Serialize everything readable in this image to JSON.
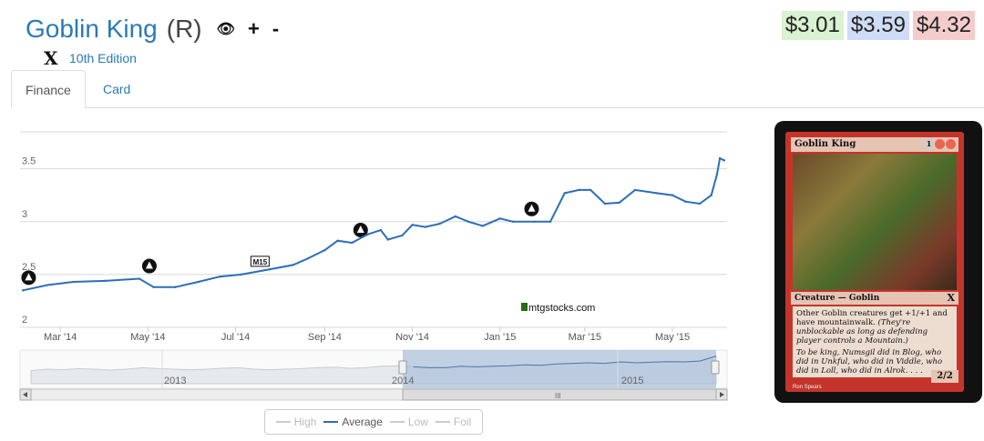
{
  "card": {
    "name": "Goblin King",
    "rarity": "(R)",
    "set_name": "10th Edition",
    "set_symbol": "X",
    "type_line": "Creature — Goblin",
    "rules_text": "Other Goblin creatures get +1/+1 and have mountainwalk.",
    "reminder_text": "(They're unblockable as long as defending player controls a Mountain.)",
    "flavor_text": "To be king, Numsgil did in Blog, who did in Unkful, who did in Viddle, who did in Loll, who did in Alrok. . . .",
    "power_toughness": "2/2",
    "mana_cost": [
      "1",
      "R",
      "R"
    ],
    "artist": "Ron Spears"
  },
  "header_icons": {
    "watch": "eye-icon",
    "add": "+",
    "remove": "-"
  },
  "prices": [
    {
      "label": "$3.01",
      "color": "#d9f2d0"
    },
    {
      "label": "$3.59",
      "color": "#cfdcf5"
    },
    {
      "label": "$4.32",
      "color": "#f5cccc"
    }
  ],
  "tabs": [
    {
      "label": "Finance",
      "active": true
    },
    {
      "label": "Card",
      "active": false
    }
  ],
  "chart_data": {
    "type": "line",
    "series": [
      {
        "name": "Average",
        "color": "#2b6eb8",
        "x": [
          "2014-02-03",
          "2014-02-20",
          "2014-03-10",
          "2014-04-01",
          "2014-04-25",
          "2014-05-05",
          "2014-05-20",
          "2014-06-05",
          "2014-06-20",
          "2014-07-05",
          "2014-07-25",
          "2014-08-10",
          "2014-08-20",
          "2014-09-01",
          "2014-09-10",
          "2014-09-20",
          "2014-10-01",
          "2014-10-10",
          "2014-10-15",
          "2014-10-25",
          "2014-11-01",
          "2014-11-10",
          "2014-11-20",
          "2014-12-01",
          "2014-12-10",
          "2014-12-20",
          "2015-01-01",
          "2015-01-10",
          "2015-01-25",
          "2015-02-05",
          "2015-02-15",
          "2015-02-25",
          "2015-03-05",
          "2015-03-15",
          "2015-03-25",
          "2015-04-05",
          "2015-04-20",
          "2015-05-01",
          "2015-05-10",
          "2015-05-20",
          "2015-05-28",
          "2015-06-01",
          "2015-06-03",
          "2015-06-06"
        ],
        "values": [
          2.35,
          2.4,
          2.43,
          2.44,
          2.46,
          2.38,
          2.38,
          2.43,
          2.48,
          2.5,
          2.55,
          2.59,
          2.65,
          2.73,
          2.82,
          2.8,
          2.88,
          2.92,
          2.83,
          2.87,
          2.97,
          2.95,
          2.98,
          3.05,
          3.0,
          2.96,
          3.03,
          3.0,
          3.0,
          3.0,
          3.27,
          3.3,
          3.3,
          3.17,
          3.18,
          3.3,
          3.27,
          3.25,
          3.19,
          3.17,
          3.25,
          3.45,
          3.6,
          3.58
        ]
      }
    ],
    "y_ticks": [
      "2",
      "2.5",
      "3",
      "3.5"
    ],
    "ylim": [
      2,
      3.85
    ],
    "x_ticks": [
      "Mar '14",
      "May '14",
      "Jul '14",
      "Sep '14",
      "Nov '14",
      "Jan '15",
      "Mar '15",
      "May '15"
    ],
    "x_tick_dates": [
      "2014-03-01",
      "2014-05-01",
      "2014-07-01",
      "2014-09-01",
      "2014-11-01",
      "2015-01-01",
      "2015-03-01",
      "2015-05-01"
    ],
    "xlim": [
      "2014-02-01",
      "2015-06-08"
    ],
    "navigator_labels": [
      "2013",
      "2014",
      "2015"
    ],
    "watermark": "mtgstocks.com",
    "set_release_markers": [
      {
        "date": "2014-02-07",
        "label": "born-of-the-gods-icon"
      },
      {
        "date": "2014-05-02",
        "label": "journey-into-nyx-icon"
      },
      {
        "date": "2014-07-18",
        "label": "M15"
      },
      {
        "date": "2014-09-26",
        "label": "khans-of-tarkir-icon"
      },
      {
        "date": "2015-01-23",
        "label": "fate-reforged-icon"
      }
    ],
    "grid": true
  },
  "legend": [
    {
      "label": "High",
      "active": false
    },
    {
      "label": "Average",
      "active": true
    },
    {
      "label": "Low",
      "active": false
    },
    {
      "label": "Foil",
      "active": false
    }
  ]
}
